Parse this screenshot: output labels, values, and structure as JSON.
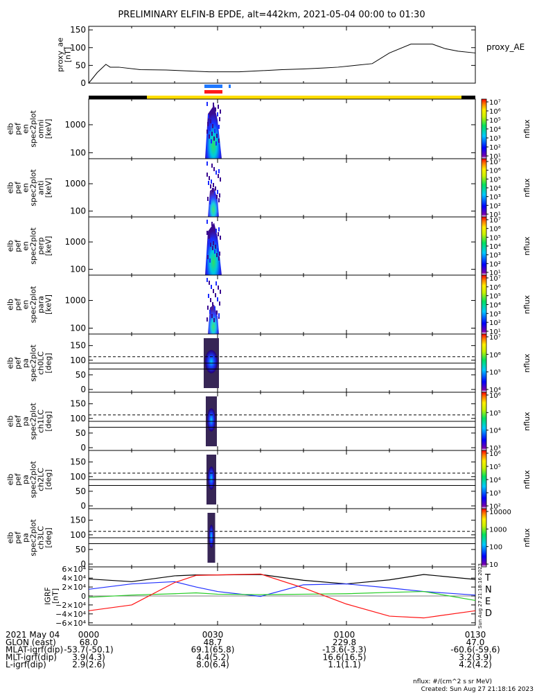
{
  "title": "PRELIMINARY ELFIN-B EPDE, alt=442km, 2021-05-04 00:00 to 01:30",
  "colors": {
    "science_zone": "#ffdd00",
    "bar_blue": "#1f78ff",
    "bar_red": "#ff1a1a",
    "grf_T": "#000000",
    "grf_N": "#1f2fff",
    "grf_E": "#22cc22",
    "grf_D": "#ff1111"
  },
  "panels": [
    {
      "name": "proxy_ae",
      "ylabel": [
        "proxy_ae",
        "[nT]"
      ],
      "side_label": "proxy_AE",
      "ticks": [
        "150",
        "100",
        "50",
        "0"
      ],
      "tick_values": [
        150,
        100,
        50,
        0
      ],
      "ylim": [
        0,
        160
      ]
    },
    {
      "name": "omni",
      "ylabel": [
        "elb",
        "pef",
        "en",
        "spec2plot",
        "omni",
        "[keV]"
      ],
      "ticks": [
        "1000",
        "100"
      ],
      "colorbar": [
        "10⁷",
        "10⁶",
        "10⁵",
        "10⁴",
        "10³",
        "10²",
        "10¹"
      ],
      "cbar_label": "nflux"
    },
    {
      "name": "anti",
      "ylabel": [
        "elb",
        "pef",
        "en",
        "spec2plot",
        "anti",
        "[keV]"
      ],
      "ticks": [
        "1000",
        "100"
      ],
      "colorbar": [
        "10⁷",
        "10⁶",
        "10⁵",
        "10⁴",
        "10³",
        "10²",
        "10¹"
      ],
      "cbar_label": "nflux"
    },
    {
      "name": "perp",
      "ylabel": [
        "elb",
        "pef",
        "en",
        "spec2plot",
        "perp",
        "[keV]"
      ],
      "ticks": [
        "1000",
        "100"
      ],
      "colorbar": [
        "10⁷",
        "10⁶",
        "10⁵",
        "10⁴",
        "10³",
        "10²",
        "10¹"
      ],
      "cbar_label": "nflux"
    },
    {
      "name": "para",
      "ylabel": [
        "elb",
        "pef",
        "en",
        "spec2plot",
        "para",
        "[keV]"
      ],
      "ticks": [
        "1000",
        "100"
      ],
      "colorbar": [
        "10⁷",
        "10⁶",
        "10⁵",
        "10⁴",
        "10³",
        "10²",
        "10¹"
      ],
      "cbar_label": "nflux"
    },
    {
      "name": "ch0LC",
      "ylabel": [
        "elb",
        "pef",
        "pa",
        "spec2plot",
        "ch0LC",
        "[deg]"
      ],
      "ticks": [
        "150",
        "100",
        "50",
        "0"
      ],
      "colorbar": [
        "10⁷",
        "10⁶",
        "10⁵",
        "10⁴"
      ],
      "cbar_label": "nflux"
    },
    {
      "name": "ch1LC",
      "ylabel": [
        "elb",
        "pef",
        "pa",
        "spec2plot",
        "ch1LC",
        "[deg]"
      ],
      "ticks": [
        "150",
        "100",
        "50",
        "0"
      ],
      "colorbar": [
        "10⁶",
        "10⁵",
        "10⁴",
        "10³"
      ],
      "cbar_label": "nflux"
    },
    {
      "name": "ch2LC",
      "ylabel": [
        "elb",
        "pef",
        "pa",
        "spec2plot",
        "ch2LC",
        "[deg]"
      ],
      "ticks": [
        "150",
        "100",
        "50",
        "0"
      ],
      "colorbar": [
        "10⁶",
        "10⁵",
        "10⁴",
        "10³",
        "10²"
      ],
      "cbar_label": "nflux"
    },
    {
      "name": "ch3LC",
      "ylabel": [
        "elb",
        "pef",
        "pa",
        "spec2plot",
        "ch3LC",
        "[deg]"
      ],
      "ticks": [
        "150",
        "100",
        "50",
        "0"
      ],
      "colorbar": [
        "10000",
        "1000",
        "100",
        "10"
      ],
      "cbar_label": "nflux"
    },
    {
      "name": "igrf",
      "ylabel": [
        "IGRF",
        "[nT]"
      ],
      "ticks": [
        "6×10⁴",
        "4×10⁴",
        "2×10⁴",
        "0",
        "−2×10⁴",
        "−4×10⁴",
        "−6×10⁴"
      ],
      "tick_values": [
        60000,
        40000,
        20000,
        0,
        -20000,
        -40000,
        -60000
      ],
      "ylim": [
        -65000,
        65000
      ],
      "legend": [
        "T",
        "N",
        "E",
        "D"
      ]
    }
  ],
  "chart_data": {
    "type": "line",
    "x_ticks": [
      "0000",
      "0030",
      "0100",
      "0130"
    ],
    "x_minutes": [
      0,
      30,
      60,
      90
    ],
    "proxy_ae": {
      "x_minutes": [
        0,
        2,
        4,
        5,
        7,
        12,
        18,
        28,
        35,
        45,
        50,
        55,
        58,
        62,
        66,
        70,
        75,
        80,
        83,
        86,
        90
      ],
      "values": [
        0,
        30,
        53,
        45,
        45,
        38,
        37,
        32,
        32,
        38,
        40,
        43,
        45,
        50,
        55,
        85,
        110,
        110,
        97,
        90,
        85
      ]
    },
    "igrf": {
      "x_minutes": [
        0,
        10,
        20,
        25,
        30,
        40,
        50,
        60,
        70,
        78,
        90
      ],
      "series": [
        {
          "name": "T",
          "values": [
            38000,
            32000,
            45000,
            47000,
            47000,
            48000,
            35000,
            27000,
            36000,
            48000,
            37000
          ]
        },
        {
          "name": "N",
          "values": [
            15000,
            27000,
            32000,
            20000,
            10000,
            -1000,
            25000,
            27000,
            18000,
            10000,
            2000
          ]
        },
        {
          "name": "E",
          "values": [
            -3000,
            2000,
            5000,
            7000,
            4000,
            3000,
            4000,
            5000,
            8000,
            10000,
            -10000
          ]
        },
        {
          "name": "D",
          "values": [
            -33000,
            -20000,
            30000,
            46000,
            47000,
            49000,
            18000,
            -18000,
            -45000,
            -49000,
            -33000
          ]
        }
      ]
    }
  },
  "footer": {
    "rows": [
      {
        "label": "2021 May 04",
        "values": [
          "0000",
          "0030",
          "0100",
          "0130"
        ]
      },
      {
        "label": "GLON (east)",
        "values": [
          "68.0",
          "48.7",
          "229.8",
          "47.0"
        ]
      },
      {
        "label": "MLAT-igrf(dip)",
        "values": [
          "-53.7(-50.1)",
          "69.1(65.8)",
          "-13.6(-3.3)",
          "-60.6(-59.6)"
        ]
      },
      {
        "label": "MLT-igrf(dip)",
        "values": [
          "3.9(4.3)",
          "4.4(5.2)",
          "16.6(16.5)",
          "3.2(3.9)"
        ]
      },
      {
        "label": "L-igrf(dip)",
        "values": [
          "2.9(2.6)",
          "8.0(6.4)",
          "1.1(1.1)",
          "4.2(4.2)"
        ]
      }
    ],
    "units_note": "nflux: #/(cm^2 s sr MeV)",
    "created": "Created: Sun Aug 27 21:18:16 2023",
    "vertical_stamp": "Sun Aug 27 21:18:16 2023"
  }
}
